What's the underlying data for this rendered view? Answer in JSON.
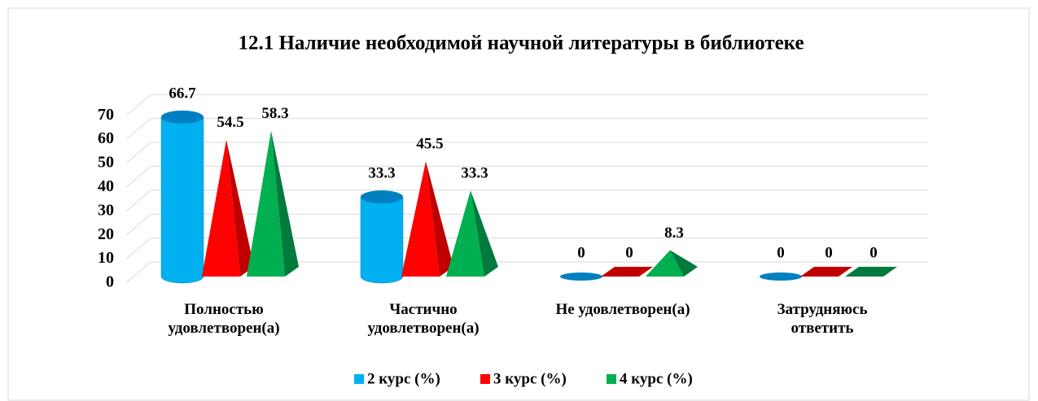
{
  "chart_data": {
    "type": "bar3d",
    "title": "12.1 Наличие необходимой научной литературы в библиотеке",
    "categories": [
      [
        "Полностью",
        "удовлетворен(а)"
      ],
      [
        "Частично",
        "удовлетворен(а)"
      ],
      [
        "Не удовлетворен(а)"
      ],
      [
        "Затрудняюсь",
        "ответить"
      ]
    ],
    "series": [
      {
        "name": "2 курс (%)",
        "color": "#00b0f0",
        "side": "#0080c0",
        "shape": "cylinder",
        "values": [
          66.7,
          33.3,
          0,
          0
        ]
      },
      {
        "name": "3 курс (%)",
        "color": "#ff0000",
        "side": "#c00000",
        "shape": "pyramid",
        "values": [
          54.5,
          45.5,
          0,
          0
        ]
      },
      {
        "name": "4 курс (%)",
        "color": "#00b050",
        "side": "#007a3d",
        "shape": "pyramid",
        "values": [
          58.3,
          33.3,
          8.3,
          0
        ]
      }
    ],
    "ylim": [
      0,
      70
    ],
    "yticks": [
      0,
      10,
      20,
      30,
      40,
      50,
      60,
      70
    ],
    "grid": true,
    "legend": "bottom"
  }
}
